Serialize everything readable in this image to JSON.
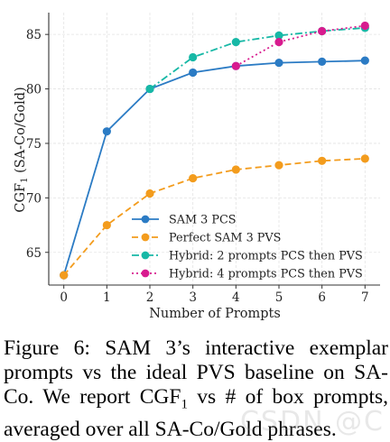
{
  "chart_data": {
    "type": "line",
    "xlabel": "Number of Prompts",
    "ylabel_main": "CGF",
    "ylabel_sub": "1",
    "ylabel_rest": " (SA-Co/Gold)",
    "xlim": [
      -0.35,
      7.35
    ],
    "ylim": [
      62,
      87
    ],
    "xticks": [
      0,
      1,
      2,
      3,
      4,
      5,
      6,
      7
    ],
    "yticks": [
      65,
      70,
      75,
      80,
      85
    ],
    "grid": true,
    "legend_position": "lower-right",
    "series": [
      {
        "name": "SAM 3 PCS",
        "color": "#2b7bc4",
        "style": "solid",
        "marker": "circle",
        "points": [
          [
            0,
            62.9
          ],
          [
            1,
            76.1
          ],
          [
            2,
            80.0
          ],
          [
            3,
            81.5
          ],
          [
            4,
            82.1
          ],
          [
            5,
            82.4
          ],
          [
            6,
            82.5
          ],
          [
            7,
            82.6
          ]
        ]
      },
      {
        "name": "Perfect SAM 3 PVS",
        "color": "#f39c1d",
        "style": "dashed",
        "marker": "circle",
        "points": [
          [
            0,
            62.9
          ],
          [
            1,
            67.5
          ],
          [
            2,
            70.4
          ],
          [
            3,
            71.8
          ],
          [
            4,
            72.6
          ],
          [
            5,
            73.0
          ],
          [
            6,
            73.4
          ],
          [
            7,
            73.6
          ]
        ]
      },
      {
        "name": "Hybrid: 2 prompts PCS then PVS",
        "color": "#17b8a6",
        "style": "dashdot",
        "marker": "circle",
        "points": [
          [
            2,
            80.0
          ],
          [
            3,
            82.9
          ],
          [
            4,
            84.3
          ],
          [
            5,
            84.9
          ],
          [
            6,
            85.3
          ],
          [
            7,
            85.6
          ]
        ]
      },
      {
        "name": "Hybrid: 4 prompts PCS then PVS",
        "color": "#d81b8f",
        "style": "dotted",
        "marker": "circle",
        "points": [
          [
            4,
            82.1
          ],
          [
            5,
            84.3
          ],
          [
            6,
            85.3
          ],
          [
            7,
            85.8
          ]
        ]
      }
    ]
  },
  "caption": {
    "line1": "Figure 6:  SAM 3’s interactive exemplar",
    "line2": "prompts vs the ideal PVS baseline on SA-",
    "line3_pre": "Co. We report CGF",
    "line3_sub": "1",
    "line3_post": " vs # of box prompts,",
    "line4": "averaged over all SA-Co/Gold phrases."
  },
  "watermark": "CSDN @C"
}
